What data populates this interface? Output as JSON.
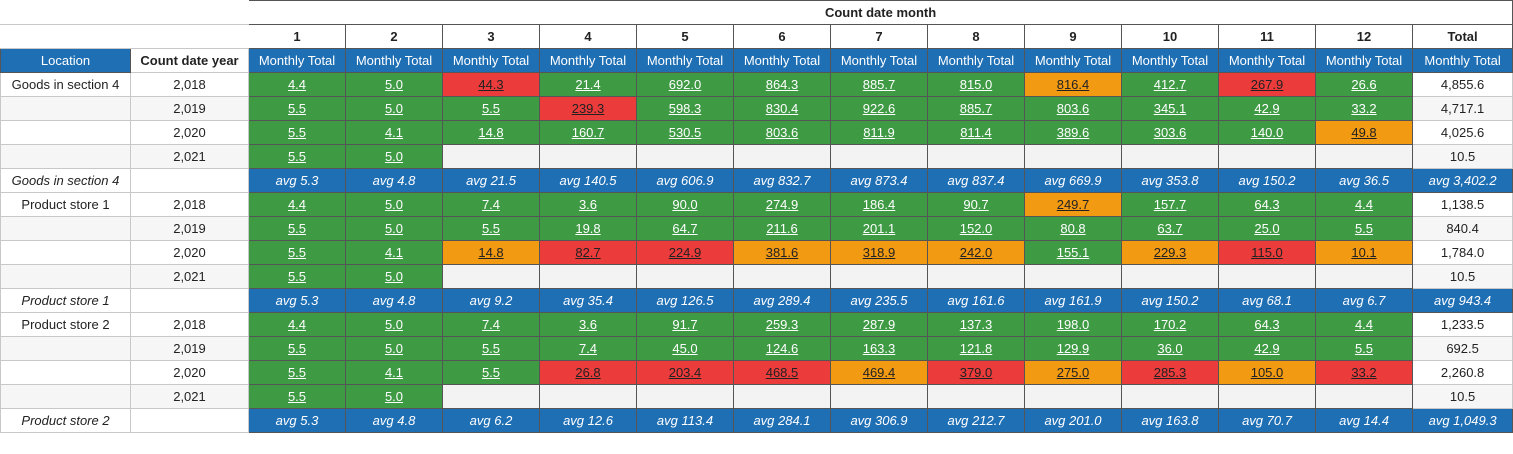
{
  "header": {
    "title": "Count date month",
    "months": [
      "1",
      "2",
      "3",
      "4",
      "5",
      "6",
      "7",
      "8",
      "9",
      "10",
      "11",
      "12"
    ],
    "total_label": "Total",
    "location_label": "Location",
    "year_label": "Count date year",
    "measure_label": "Monthly Total"
  },
  "colors": {
    "header_blue": "#1f6fb5",
    "green": "#3f9a44",
    "red": "#ec3b3b",
    "orange": "#f39a13"
  },
  "groups": [
    {
      "location": "Goods in section 4",
      "rows": [
        {
          "year": "2,018",
          "cells": [
            {
              "v": "4.4",
              "c": "green"
            },
            {
              "v": "5.0",
              "c": "green"
            },
            {
              "v": "44.3",
              "c": "red"
            },
            {
              "v": "21.4",
              "c": "green"
            },
            {
              "v": "692.0",
              "c": "green"
            },
            {
              "v": "864.3",
              "c": "green"
            },
            {
              "v": "885.7",
              "c": "green"
            },
            {
              "v": "815.0",
              "c": "green"
            },
            {
              "v": "816.4",
              "c": "orange"
            },
            {
              "v": "412.7",
              "c": "green"
            },
            {
              "v": "267.9",
              "c": "red"
            },
            {
              "v": "26.6",
              "c": "green"
            }
          ],
          "total": "4,855.6"
        },
        {
          "year": "2,019",
          "cells": [
            {
              "v": "5.5",
              "c": "green"
            },
            {
              "v": "5.0",
              "c": "green"
            },
            {
              "v": "5.5",
              "c": "green"
            },
            {
              "v": "239.3",
              "c": "red"
            },
            {
              "v": "598.3",
              "c": "green"
            },
            {
              "v": "830.4",
              "c": "green"
            },
            {
              "v": "922.6",
              "c": "green"
            },
            {
              "v": "885.7",
              "c": "green"
            },
            {
              "v": "803.6",
              "c": "green"
            },
            {
              "v": "345.1",
              "c": "green"
            },
            {
              "v": "42.9",
              "c": "green"
            },
            {
              "v": "33.2",
              "c": "green"
            }
          ],
          "total": "4,717.1"
        },
        {
          "year": "2,020",
          "cells": [
            {
              "v": "5.5",
              "c": "green"
            },
            {
              "v": "4.1",
              "c": "green"
            },
            {
              "v": "14.8",
              "c": "green"
            },
            {
              "v": "160.7",
              "c": "green"
            },
            {
              "v": "530.5",
              "c": "green"
            },
            {
              "v": "803.6",
              "c": "green"
            },
            {
              "v": "811.9",
              "c": "green"
            },
            {
              "v": "811.4",
              "c": "green"
            },
            {
              "v": "389.6",
              "c": "green"
            },
            {
              "v": "303.6",
              "c": "green"
            },
            {
              "v": "140.0",
              "c": "green"
            },
            {
              "v": "49.8",
              "c": "orange"
            }
          ],
          "total": "4,025.6"
        },
        {
          "year": "2,021",
          "cells": [
            {
              "v": "5.5",
              "c": "green"
            },
            {
              "v": "5.0",
              "c": "green"
            },
            {
              "v": "",
              "c": "empty"
            },
            {
              "v": "",
              "c": "empty"
            },
            {
              "v": "",
              "c": "empty"
            },
            {
              "v": "",
              "c": "empty"
            },
            {
              "v": "",
              "c": "empty"
            },
            {
              "v": "",
              "c": "empty"
            },
            {
              "v": "",
              "c": "empty"
            },
            {
              "v": "",
              "c": "empty"
            },
            {
              "v": "",
              "c": "empty"
            },
            {
              "v": "",
              "c": "empty"
            }
          ],
          "total": "10.5"
        }
      ],
      "subtotal": {
        "label": "Goods in section 4",
        "avgs": [
          "avg 5.3",
          "avg 4.8",
          "avg 21.5",
          "avg 140.5",
          "avg 606.9",
          "avg 832.7",
          "avg 873.4",
          "avg 837.4",
          "avg 669.9",
          "avg 353.8",
          "avg 150.2",
          "avg 36.5"
        ],
        "total": "avg 3,402.2"
      }
    },
    {
      "location": "Product store 1",
      "rows": [
        {
          "year": "2,018",
          "cells": [
            {
              "v": "4.4",
              "c": "green"
            },
            {
              "v": "5.0",
              "c": "green"
            },
            {
              "v": "7.4",
              "c": "green"
            },
            {
              "v": "3.6",
              "c": "green"
            },
            {
              "v": "90.0",
              "c": "green"
            },
            {
              "v": "274.9",
              "c": "green"
            },
            {
              "v": "186.4",
              "c": "green"
            },
            {
              "v": "90.7",
              "c": "green"
            },
            {
              "v": "249.7",
              "c": "orange"
            },
            {
              "v": "157.7",
              "c": "green"
            },
            {
              "v": "64.3",
              "c": "green"
            },
            {
              "v": "4.4",
              "c": "green"
            }
          ],
          "total": "1,138.5"
        },
        {
          "year": "2,019",
          "cells": [
            {
              "v": "5.5",
              "c": "green"
            },
            {
              "v": "5.0",
              "c": "green"
            },
            {
              "v": "5.5",
              "c": "green"
            },
            {
              "v": "19.8",
              "c": "green"
            },
            {
              "v": "64.7",
              "c": "green"
            },
            {
              "v": "211.6",
              "c": "green"
            },
            {
              "v": "201.1",
              "c": "green"
            },
            {
              "v": "152.0",
              "c": "green"
            },
            {
              "v": "80.8",
              "c": "green"
            },
            {
              "v": "63.7",
              "c": "green"
            },
            {
              "v": "25.0",
              "c": "green"
            },
            {
              "v": "5.5",
              "c": "green"
            }
          ],
          "total": "840.4"
        },
        {
          "year": "2,020",
          "cells": [
            {
              "v": "5.5",
              "c": "green"
            },
            {
              "v": "4.1",
              "c": "green"
            },
            {
              "v": "14.8",
              "c": "orange"
            },
            {
              "v": "82.7",
              "c": "red"
            },
            {
              "v": "224.9",
              "c": "red"
            },
            {
              "v": "381.6",
              "c": "orange"
            },
            {
              "v": "318.9",
              "c": "orange"
            },
            {
              "v": "242.0",
              "c": "orange"
            },
            {
              "v": "155.1",
              "c": "green"
            },
            {
              "v": "229.3",
              "c": "orange"
            },
            {
              "v": "115.0",
              "c": "red"
            },
            {
              "v": "10.1",
              "c": "orange"
            }
          ],
          "total": "1,784.0"
        },
        {
          "year": "2,021",
          "cells": [
            {
              "v": "5.5",
              "c": "green"
            },
            {
              "v": "5.0",
              "c": "green"
            },
            {
              "v": "",
              "c": "empty"
            },
            {
              "v": "",
              "c": "empty"
            },
            {
              "v": "",
              "c": "empty"
            },
            {
              "v": "",
              "c": "empty"
            },
            {
              "v": "",
              "c": "empty"
            },
            {
              "v": "",
              "c": "empty"
            },
            {
              "v": "",
              "c": "empty"
            },
            {
              "v": "",
              "c": "empty"
            },
            {
              "v": "",
              "c": "empty"
            },
            {
              "v": "",
              "c": "empty"
            }
          ],
          "total": "10.5"
        }
      ],
      "subtotal": {
        "label": "Product store 1",
        "avgs": [
          "avg 5.3",
          "avg 4.8",
          "avg 9.2",
          "avg 35.4",
          "avg 126.5",
          "avg 289.4",
          "avg 235.5",
          "avg 161.6",
          "avg 161.9",
          "avg 150.2",
          "avg 68.1",
          "avg 6.7"
        ],
        "total": "avg 943.4"
      }
    },
    {
      "location": "Product store 2",
      "rows": [
        {
          "year": "2,018",
          "cells": [
            {
              "v": "4.4",
              "c": "green"
            },
            {
              "v": "5.0",
              "c": "green"
            },
            {
              "v": "7.4",
              "c": "green"
            },
            {
              "v": "3.6",
              "c": "green"
            },
            {
              "v": "91.7",
              "c": "green"
            },
            {
              "v": "259.3",
              "c": "green"
            },
            {
              "v": "287.9",
              "c": "green"
            },
            {
              "v": "137.3",
              "c": "green"
            },
            {
              "v": "198.0",
              "c": "green"
            },
            {
              "v": "170.2",
              "c": "green"
            },
            {
              "v": "64.3",
              "c": "green"
            },
            {
              "v": "4.4",
              "c": "green"
            }
          ],
          "total": "1,233.5"
        },
        {
          "year": "2,019",
          "cells": [
            {
              "v": "5.5",
              "c": "green"
            },
            {
              "v": "5.0",
              "c": "green"
            },
            {
              "v": "5.5",
              "c": "green"
            },
            {
              "v": "7.4",
              "c": "green"
            },
            {
              "v": "45.0",
              "c": "green"
            },
            {
              "v": "124.6",
              "c": "green"
            },
            {
              "v": "163.3",
              "c": "green"
            },
            {
              "v": "121.8",
              "c": "green"
            },
            {
              "v": "129.9",
              "c": "green"
            },
            {
              "v": "36.0",
              "c": "green"
            },
            {
              "v": "42.9",
              "c": "green"
            },
            {
              "v": "5.5",
              "c": "green"
            }
          ],
          "total": "692.5"
        },
        {
          "year": "2,020",
          "cells": [
            {
              "v": "5.5",
              "c": "green"
            },
            {
              "v": "4.1",
              "c": "green"
            },
            {
              "v": "5.5",
              "c": "green"
            },
            {
              "v": "26.8",
              "c": "red"
            },
            {
              "v": "203.4",
              "c": "red"
            },
            {
              "v": "468.5",
              "c": "red"
            },
            {
              "v": "469.4",
              "c": "orange"
            },
            {
              "v": "379.0",
              "c": "red"
            },
            {
              "v": "275.0",
              "c": "orange"
            },
            {
              "v": "285.3",
              "c": "red"
            },
            {
              "v": "105.0",
              "c": "orange"
            },
            {
              "v": "33.2",
              "c": "red"
            }
          ],
          "total": "2,260.8"
        },
        {
          "year": "2,021",
          "cells": [
            {
              "v": "5.5",
              "c": "green"
            },
            {
              "v": "5.0",
              "c": "green"
            },
            {
              "v": "",
              "c": "empty"
            },
            {
              "v": "",
              "c": "empty"
            },
            {
              "v": "",
              "c": "empty"
            },
            {
              "v": "",
              "c": "empty"
            },
            {
              "v": "",
              "c": "empty"
            },
            {
              "v": "",
              "c": "empty"
            },
            {
              "v": "",
              "c": "empty"
            },
            {
              "v": "",
              "c": "empty"
            },
            {
              "v": "",
              "c": "empty"
            },
            {
              "v": "",
              "c": "empty"
            }
          ],
          "total": "10.5"
        }
      ],
      "subtotal": {
        "label": "Product store 2",
        "avgs": [
          "avg 5.3",
          "avg 4.8",
          "avg 6.2",
          "avg 12.6",
          "avg 113.4",
          "avg 284.1",
          "avg 306.9",
          "avg 212.7",
          "avg 201.0",
          "avg 163.8",
          "avg 70.7",
          "avg 14.4"
        ],
        "total": "avg 1,049.3"
      }
    }
  ]
}
